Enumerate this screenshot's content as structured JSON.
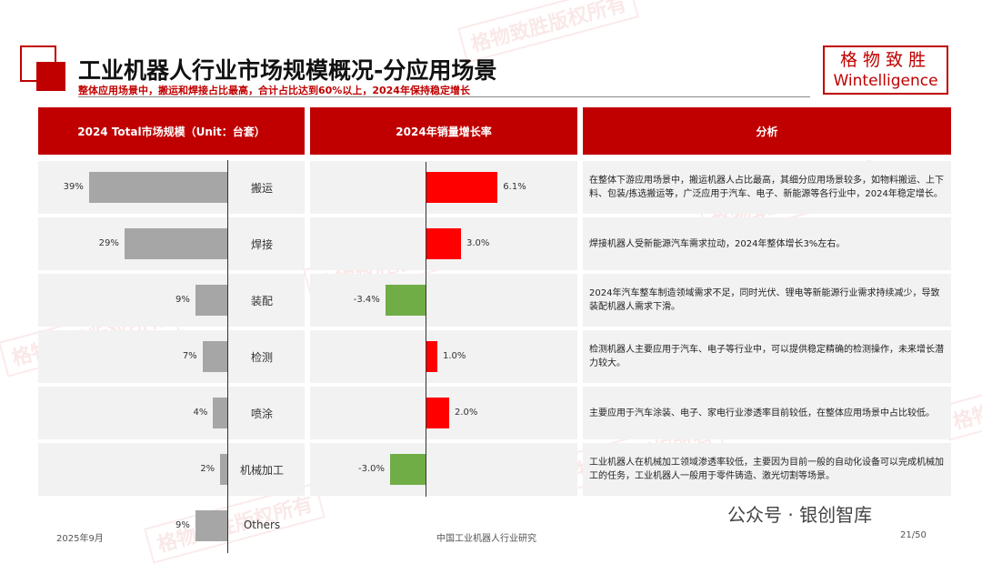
{
  "header": {
    "title": "工业机器人行业市场规模概况-分应用场景",
    "subtitle": "整体应用场景中，搬运和焊接占比最高，合计占比达到60%以上，2024年保持稳定增长",
    "logo_cn": "格物致胜",
    "logo_en": "Wintelligence"
  },
  "watermark": "格物致胜版权所有",
  "colors": {
    "share": "#a6a6a6",
    "positive": "#ff0000",
    "negative": "#70ad47",
    "header": "#c00000"
  },
  "table": {
    "headers": [
      "2024 Total市场规模（Unit：台套）",
      "2024年销量增长率",
      "分析"
    ],
    "rows": [
      {
        "category": "搬运",
        "share": 39,
        "share_label": "39%",
        "growth": 6.1,
        "growth_label": "6.1%",
        "analysis": "在整体下游应用场景中，搬运机器人占比最高，其细分应用场景较多，如物料搬运、上下料、包装/拣选搬运等，广泛应用于汽车、电子、新能源等各行业中，2024年稳定增长。"
      },
      {
        "category": "焊接",
        "share": 29,
        "share_label": "29%",
        "growth": 3.0,
        "growth_label": "3.0%",
        "analysis": "焊接机器人受新能源汽车需求拉动，2024年整体增长3%左右。"
      },
      {
        "category": "装配",
        "share": 9,
        "share_label": "9%",
        "growth": -3.4,
        "growth_label": "-3.4%",
        "analysis": "2024年汽车整车制造领域需求不足，同时光伏、锂电等新能源行业需求持续减少，导致装配机器人需求下滑。"
      },
      {
        "category": "检测",
        "share": 7,
        "share_label": "7%",
        "growth": 1.0,
        "growth_label": "1.0%",
        "analysis": "检测机器人主要应用于汽车、电子等行业中，可以提供稳定精确的检测操作，未来增长潜力较大。"
      },
      {
        "category": "喷涂",
        "share": 4,
        "share_label": "4%",
        "growth": 2.0,
        "growth_label": "2.0%",
        "analysis": "主要应用于汽车涂装、电子、家电行业渗透率目前较低，在整体应用场景中占比较低。"
      },
      {
        "category": "机械加工",
        "share": 2,
        "share_label": "2%",
        "growth": -3.0,
        "growth_label": "-3.0%",
        "analysis": "工业机器人在机械加工领域渗透率较低，主要因为目前一般的自动化设备可以完成机械加工的任务，工业机器人一般用于零件铸造、激光切割等场景。"
      },
      {
        "category": "Others",
        "share": 9,
        "share_label": "9%"
      }
    ]
  },
  "footer": {
    "date": "2025年9月",
    "center": "中国工业机器人行业研究",
    "page": "21/50",
    "wechat": "公众号 · 银创智库"
  }
}
